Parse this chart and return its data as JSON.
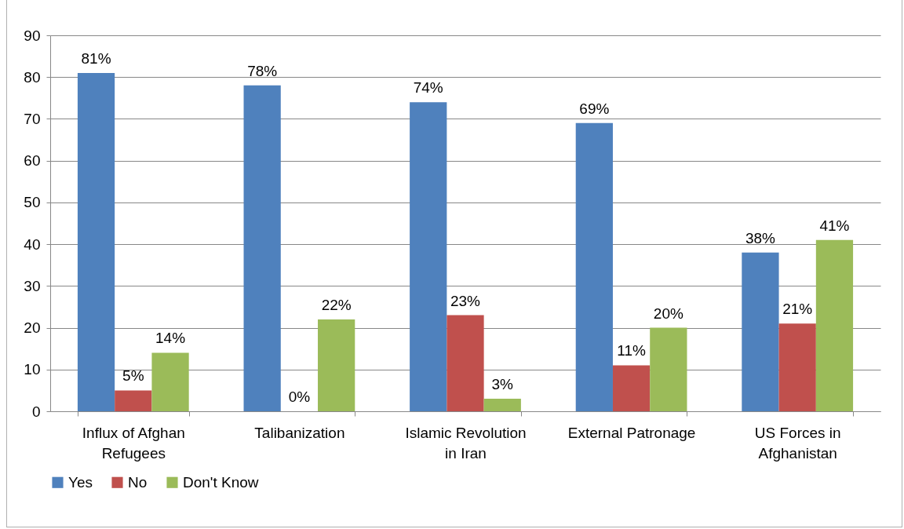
{
  "chart_data": {
    "type": "bar",
    "categories": [
      "Influx of Afghan Refugees",
      "Talibanization",
      "Islamic Revolution in Iran",
      "External Patronage",
      "US Forces in Afghanistan"
    ],
    "series": [
      {
        "name": "Yes",
        "color": "#4f81bd",
        "values": [
          81,
          78,
          74,
          69,
          38
        ],
        "value_labels": [
          "81%",
          "78%",
          "74%",
          "69%",
          "38%"
        ]
      },
      {
        "name": "No",
        "color": "#c0504d",
        "values": [
          5,
          0,
          23,
          11,
          21
        ],
        "value_labels": [
          "5%",
          "0%",
          "23%",
          "11%",
          "21%"
        ]
      },
      {
        "name": "Don't Know",
        "color": "#9bbb59",
        "values": [
          14,
          22,
          3,
          20,
          41
        ],
        "value_labels": [
          "14%",
          "22%",
          "3%",
          "20%",
          "41%"
        ]
      }
    ],
    "ylim": [
      0,
      90
    ],
    "yticks": [
      0,
      10,
      20,
      30,
      40,
      50,
      60,
      70,
      80,
      90
    ],
    "grid": "y",
    "legend": "bottom"
  }
}
